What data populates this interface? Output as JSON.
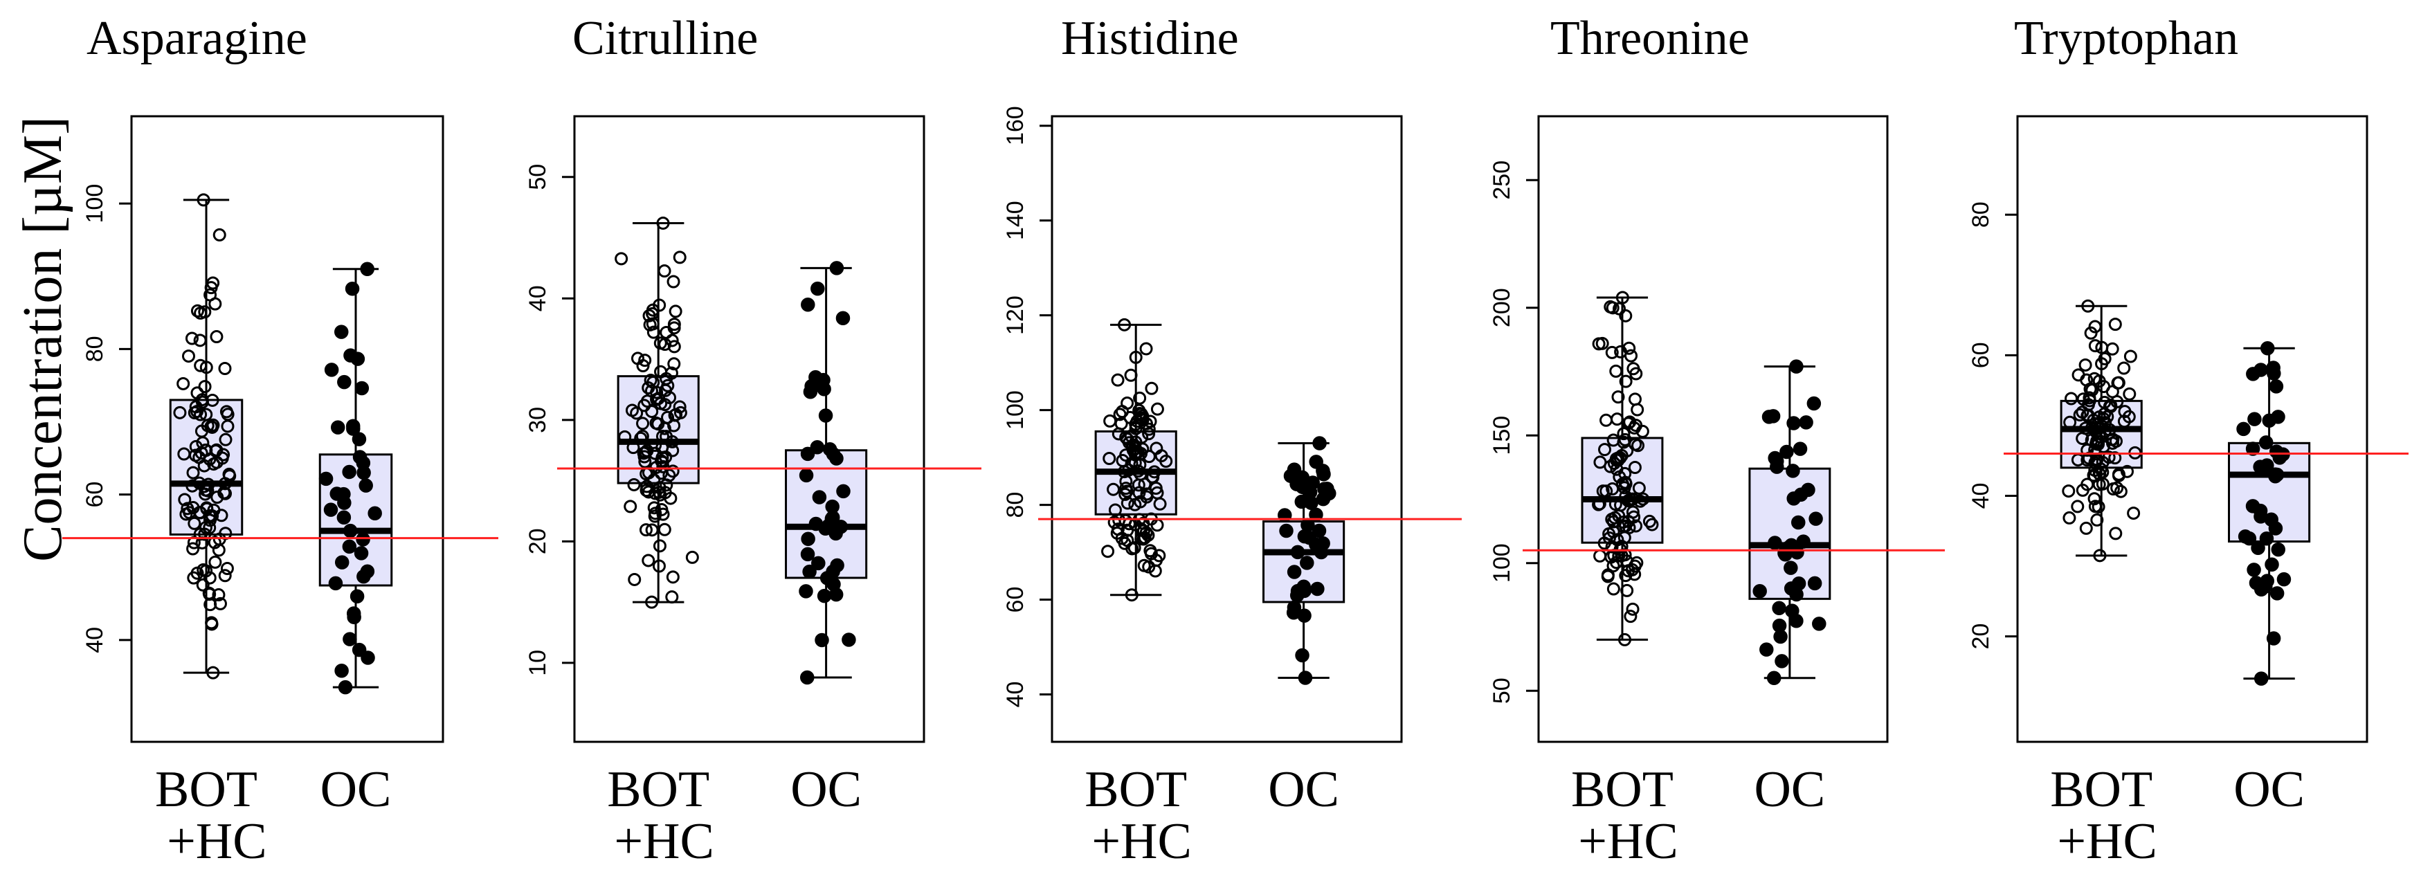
{
  "figure": {
    "y_axis_title": "Concentration [µM]"
  },
  "chart_data": [
    {
      "type": "box",
      "title": "Asparagine",
      "ylabel": "Concentration [µM]",
      "ylim": [
        26,
        112
      ],
      "yticks": [
        40,
        60,
        80,
        100
      ],
      "categories": [
        "BOT\n+HC",
        "OC"
      ],
      "reference_line": 54,
      "boxes": [
        {
          "q1": 54.5,
          "median": 61.5,
          "q3": 73,
          "whisker_low": 35.5,
          "whisker_high": 100.5,
          "marker": "open"
        },
        {
          "q1": 47.5,
          "median": 55,
          "q3": 65.5,
          "whisker_low": 33.5,
          "whisker_high": 91
        }
      ]
    },
    {
      "type": "box",
      "title": "Citrulline",
      "ylabel": "Concentration [µM]",
      "ylim": [
        3.5,
        55
      ],
      "yticks": [
        10,
        20,
        30,
        40,
        50
      ],
      "categories": [
        "BOT\n+HC",
        "OC"
      ],
      "reference_line": 26,
      "boxes": [
        {
          "q1": 24.8,
          "median": 28.2,
          "q3": 33.6,
          "whisker_low": 15,
          "whisker_high": 46.2,
          "marker": "open"
        },
        {
          "q1": 17,
          "median": 21.2,
          "q3": 27.5,
          "whisker_low": 8.8,
          "whisker_high": 42.5
        }
      ]
    },
    {
      "type": "box",
      "title": "Histidine",
      "ylabel": "Concentration [µM]",
      "ylim": [
        30,
        162
      ],
      "yticks": [
        40,
        60,
        80,
        100,
        120,
        140,
        160
      ],
      "categories": [
        "BOT\n+HC",
        "OC"
      ],
      "reference_line": 77,
      "boxes": [
        {
          "q1": 78,
          "median": 87,
          "q3": 95.5,
          "whisker_low": 61,
          "whisker_high": 118,
          "marker": "open"
        },
        {
          "q1": 59.5,
          "median": 70,
          "q3": 76.5,
          "whisker_low": 43.5,
          "whisker_high": 93
        }
      ]
    },
    {
      "type": "box",
      "title": "Threonine",
      "ylabel": "Concentration [µM]",
      "ylim": [
        30,
        275
      ],
      "yticks": [
        50,
        100,
        150,
        200,
        250
      ],
      "categories": [
        "BOT\n+HC",
        "OC"
      ],
      "reference_line": 105,
      "boxes": [
        {
          "q1": 108,
          "median": 125,
          "q3": 149,
          "whisker_low": 70,
          "whisker_high": 204,
          "marker": "open"
        },
        {
          "q1": 86,
          "median": 107,
          "q3": 137,
          "whisker_low": 55,
          "whisker_high": 177
        }
      ]
    },
    {
      "type": "box",
      "title": "Tryptophan",
      "ylabel": "Concentration [µM]",
      "ylim": [
        5,
        94
      ],
      "yticks": [
        20,
        40,
        60,
        80
      ],
      "categories": [
        "BOT\n+HC",
        "OC"
      ],
      "reference_line": 46,
      "boxes": [
        {
          "q1": 44,
          "median": 49.5,
          "q3": 53.5,
          "whisker_low": 31.5,
          "whisker_high": 67,
          "marker": "open"
        },
        {
          "q1": 33.5,
          "median": 43,
          "q3": 47.5,
          "whisker_low": 14,
          "whisker_high": 61
        }
      ]
    }
  ]
}
